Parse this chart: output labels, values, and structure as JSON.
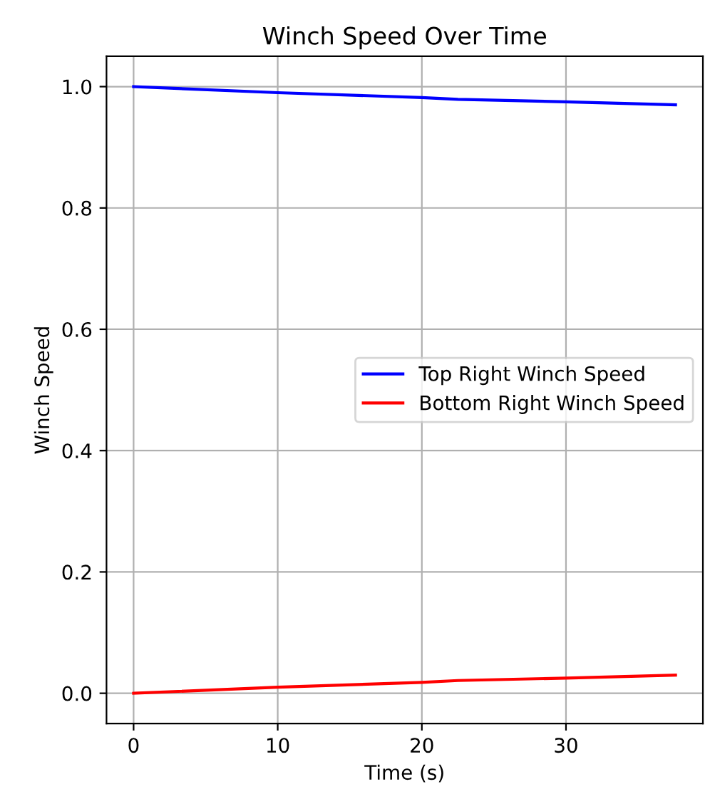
{
  "chart_data": {
    "type": "line",
    "title": "Winch Speed Over Time",
    "xlabel": "Time (s)",
    "ylabel": "Winch Speed",
    "x": [
      0,
      10,
      20,
      22.5,
      30,
      37.6
    ],
    "series": [
      {
        "name": "Top Right Winch Speed",
        "color": "#0000ff",
        "values": [
          1.0,
          0.99,
          0.982,
          0.979,
          0.975,
          0.97
        ]
      },
      {
        "name": "Bottom Right Winch Speed",
        "color": "#ff0000",
        "values": [
          0.0,
          0.01,
          0.018,
          0.021,
          0.025,
          0.03
        ]
      }
    ],
    "xlim": [
      -1.88,
      39.5
    ],
    "xticks": [
      0,
      10,
      20,
      30
    ],
    "ylim": [
      -0.05,
      1.05
    ],
    "yticks": [
      {
        "value": 0,
        "label": "0.0"
      },
      0.2,
      0.4,
      0.6,
      0.8,
      {
        "value": 1,
        "label": "1.0"
      }
    ],
    "grid": true,
    "legend": "center right"
  }
}
